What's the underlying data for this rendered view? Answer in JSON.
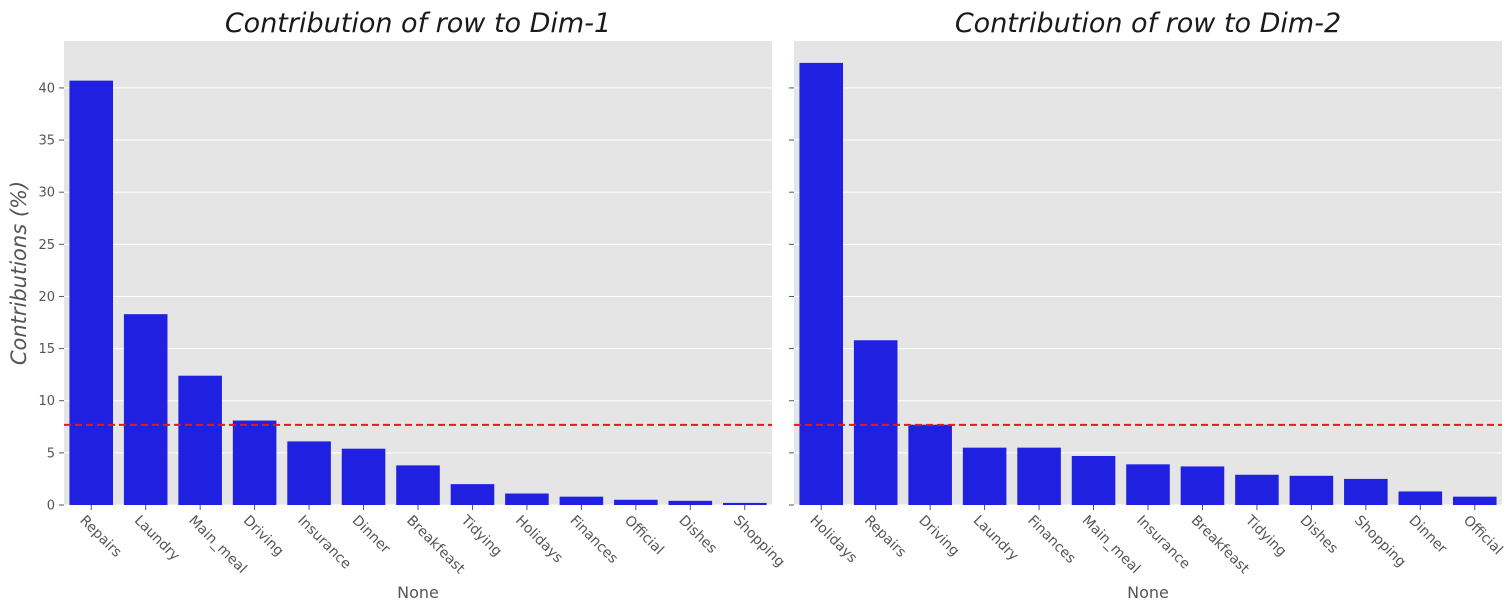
{
  "chart_data": [
    {
      "type": "bar",
      "title": "Contribution of row to Dim-1",
      "xlabel": "None",
      "ylabel": "Contributions (%)",
      "ylim": [
        0,
        44.5
      ],
      "yticks": [
        0,
        5,
        10,
        15,
        20,
        25,
        30,
        35,
        40
      ],
      "categories": [
        "Repairs",
        "Laundry",
        "Main_meal",
        "Driving",
        "Insurance",
        "Dinner",
        "Breakfeast",
        "Tidying",
        "Holidays",
        "Finances",
        "Official",
        "Dishes",
        "Shopping"
      ],
      "values": [
        40.7,
        18.3,
        12.4,
        8.1,
        6.1,
        5.4,
        3.8,
        2.0,
        1.1,
        0.8,
        0.5,
        0.4,
        0.2
      ],
      "reference_line": 7.69,
      "bar_color": "#2020e0",
      "reference_color": "#e41a1c",
      "grid": true
    },
    {
      "type": "bar",
      "title": "Contribution of row to Dim-2",
      "xlabel": "None",
      "ylabel": "",
      "ylim": [
        0,
        44.5
      ],
      "yticks": [
        0,
        5,
        10,
        15,
        20,
        25,
        30,
        35,
        40
      ],
      "categories": [
        "Holidays",
        "Repairs",
        "Driving",
        "Laundry",
        "Finances",
        "Main_meal",
        "Insurance",
        "Breakfeast",
        "Tidying",
        "Dishes",
        "Shopping",
        "Dinner",
        "Official"
      ],
      "values": [
        42.4,
        15.8,
        7.7,
        5.5,
        5.5,
        4.7,
        3.9,
        3.7,
        2.9,
        2.8,
        2.5,
        1.3,
        0.8
      ],
      "reference_line": 7.69,
      "bar_color": "#2020e0",
      "reference_color": "#e41a1c",
      "grid": true
    }
  ]
}
